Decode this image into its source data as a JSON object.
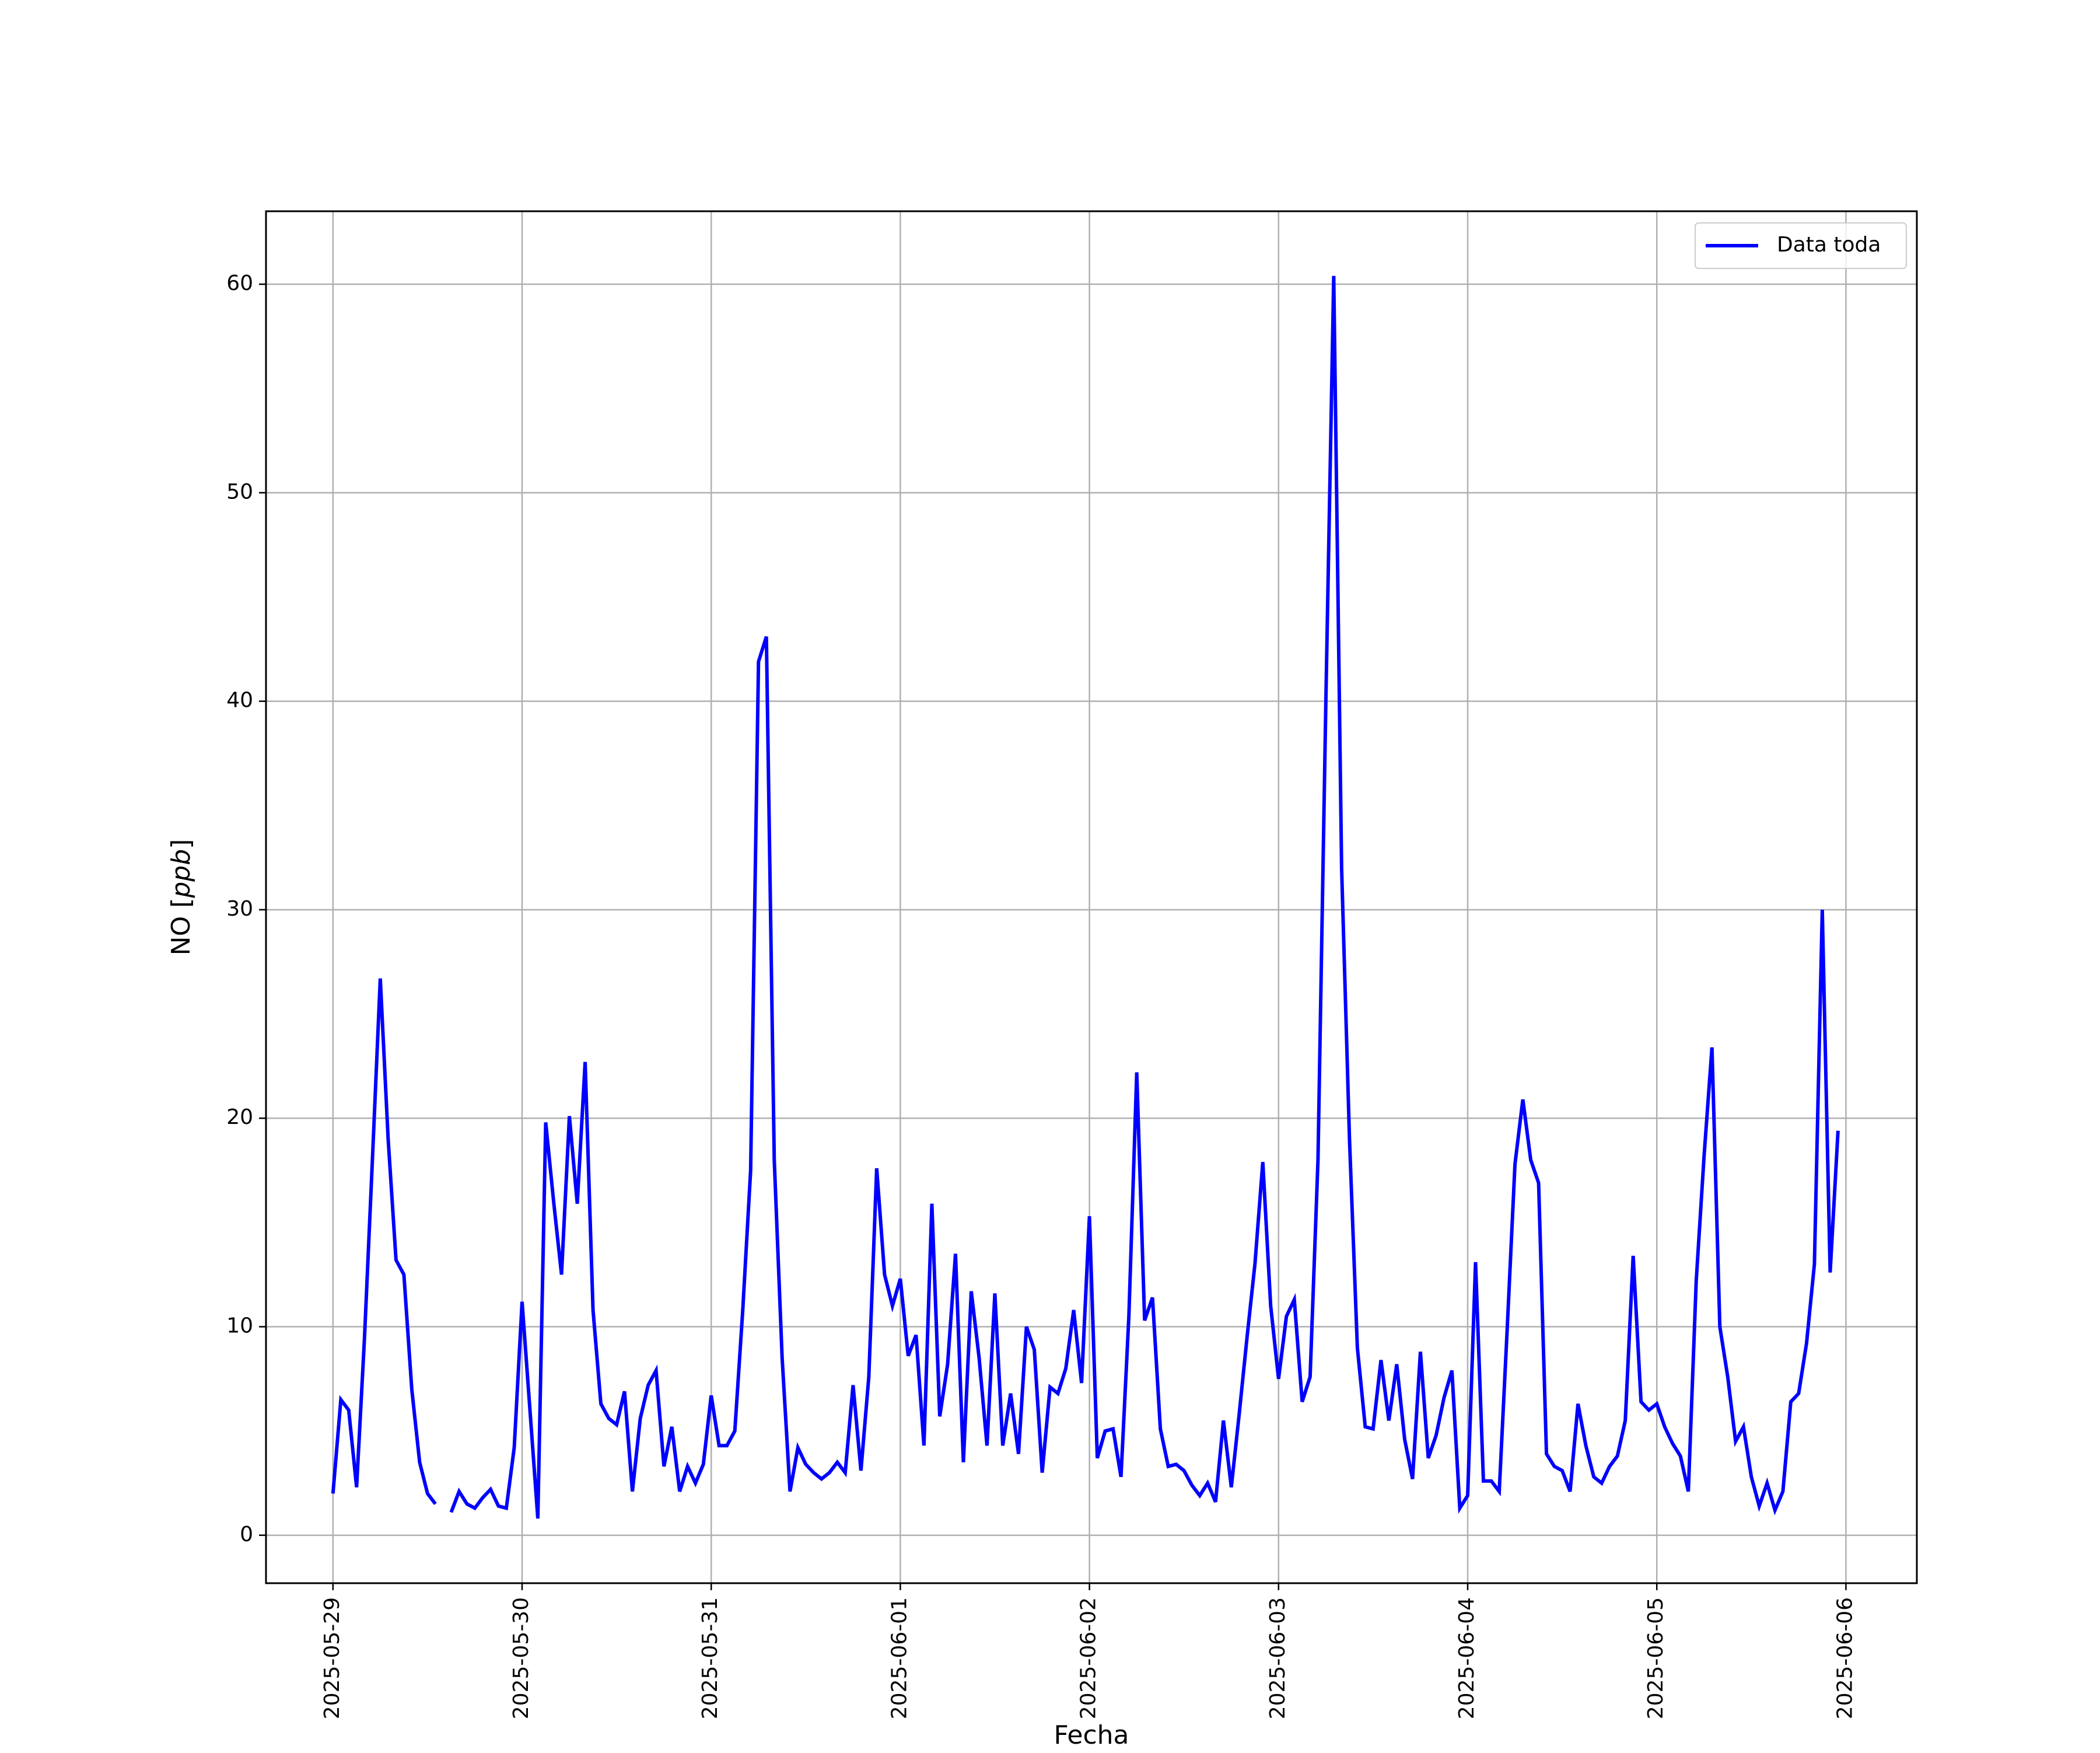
{
  "chart_data": {
    "type": "line",
    "xlabel": "Fecha",
    "ylabel_prefix": "NO [",
    "ylabel_unit": "ppb",
    "ylabel_suffix": "]",
    "x_start": "2025-05-29 00:00",
    "x_step_hours": 1,
    "xlim": [
      "2025-05-28 15:30",
      "2025-06-06 09:00"
    ],
    "ylim": [
      -2.3,
      63.5
    ],
    "xticks": [
      "2025-05-29",
      "2025-05-30",
      "2025-05-31",
      "2025-06-01",
      "2025-06-02",
      "2025-06-03",
      "2025-06-04",
      "2025-06-05",
      "2025-06-06"
    ],
    "yticks": [
      0,
      10,
      20,
      30,
      40,
      50,
      60
    ],
    "grid": true,
    "legend_position": "top-right",
    "series": [
      {
        "name": "Data toda",
        "color": "#0000ff",
        "values": [
          2.0,
          6.5,
          6.0,
          2.3,
          9.5,
          18.0,
          26.7,
          19.0,
          13.2,
          12.5,
          7.0,
          3.5,
          2.0,
          1.5,
          null,
          1.1,
          2.1,
          1.5,
          1.3,
          1.8,
          2.2,
          1.4,
          1.3,
          4.2,
          11.2,
          6.0,
          0.8,
          19.8,
          16.0,
          12.5,
          20.1,
          15.9,
          22.7,
          10.8,
          6.3,
          5.6,
          5.3,
          6.9,
          2.1,
          5.6,
          7.2,
          7.9,
          3.3,
          5.2,
          2.1,
          3.3,
          2.5,
          3.4,
          6.7,
          4.3,
          4.3,
          5.0,
          10.8,
          17.5,
          41.9,
          43.1,
          18.0,
          8.5,
          2.1,
          4.2,
          3.4,
          3.0,
          2.7,
          3.0,
          3.5,
          3.0,
          7.2,
          3.1,
          7.6,
          17.6,
          12.5,
          11.0,
          12.3,
          8.6,
          9.6,
          4.3,
          15.9,
          5.7,
          8.2,
          13.5,
          3.5,
          11.7,
          8.5,
          4.3,
          11.6,
          4.3,
          6.8,
          3.9,
          10.0,
          8.9,
          3.0,
          7.1,
          6.8,
          8.0,
          10.8,
          7.3,
          15.3,
          3.7,
          5.0,
          5.1,
          2.8,
          10.5,
          22.2,
          10.3,
          11.4,
          5.1,
          3.3,
          3.4,
          3.1,
          2.4,
          1.9,
          2.5,
          1.6,
          5.5,
          2.3,
          5.8,
          9.5,
          13.0,
          17.9,
          11.0,
          7.5,
          10.5,
          11.3,
          6.4,
          7.6,
          18.0,
          40.0,
          60.4,
          32.0,
          19.0,
          9.0,
          5.2,
          5.1,
          8.4,
          5.5,
          8.2,
          4.6,
          2.7,
          8.8,
          3.7,
          4.8,
          6.6,
          7.9,
          1.3,
          1.9,
          13.1,
          2.6,
          2.6,
          2.1,
          9.8,
          17.8,
          20.9,
          18.0,
          16.9,
          3.9,
          3.3,
          3.1,
          2.1,
          6.3,
          4.3,
          2.8,
          2.5,
          3.3,
          3.8,
          5.5,
          13.4,
          6.4,
          6.0,
          6.3,
          5.2,
          4.4,
          3.8,
          2.1,
          12.2,
          18.2,
          23.4,
          10.0,
          7.6,
          4.5,
          5.2,
          2.8,
          1.4,
          2.5,
          1.2,
          2.1,
          6.4,
          6.8,
          9.2,
          13.0,
          30.0,
          12.6,
          19.4
        ]
      }
    ]
  }
}
